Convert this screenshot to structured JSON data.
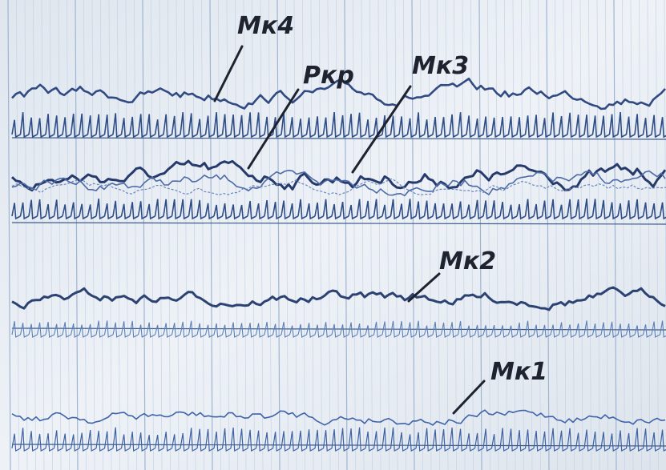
{
  "labels": [
    "Мк4",
    "Ркр",
    "Мк3",
    "Мк2",
    "Мк1"
  ]
}
